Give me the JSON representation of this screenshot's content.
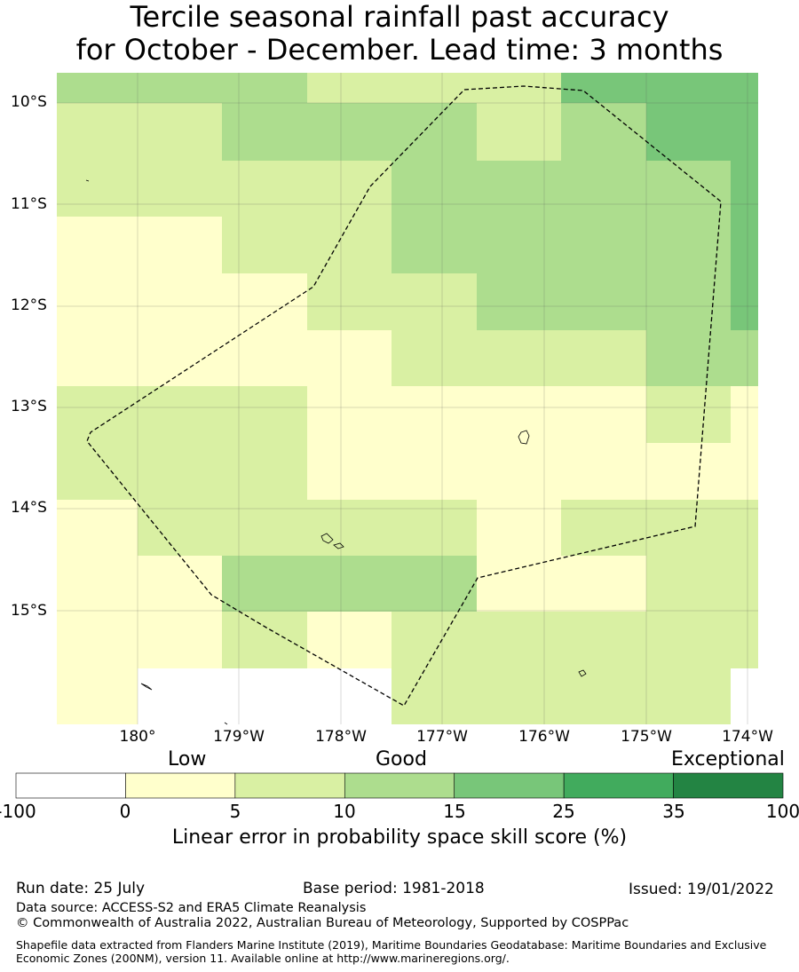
{
  "title": {
    "line1": "Tercile seasonal rainfall past accuracy",
    "line2": "for October - December. Lead time: 3 months"
  },
  "map": {
    "lat_labels": [
      "10°S",
      "11°S",
      "12°S",
      "13°S",
      "14°S",
      "15°S"
    ],
    "lon_labels": [
      "180°",
      "179°W",
      "178°W",
      "177°W",
      "176°W",
      "175°W",
      "174°W"
    ],
    "lon_range": [
      179.2,
      186.1
    ],
    "lat_range": [
      -16.1,
      -9.7
    ]
  },
  "legend": {
    "categories": [
      "Low",
      "Good",
      "Exceptional"
    ],
    "ticks": [
      "-100",
      "0",
      "5",
      "10",
      "15",
      "25",
      "35",
      "100"
    ],
    "colors": [
      "#ffffff",
      "#ffffcc",
      "#d9f0a3",
      "#addd8e",
      "#78c679",
      "#41ab5d",
      "#238443"
    ],
    "label": "Linear error in probability space skill score (%)"
  },
  "footer": {
    "run_date": "Run date: 25 July",
    "base_period": "Base period: 1981-2018",
    "issued": "Issued: 19/01/2022",
    "data_source": "Data source: ACCESS-S2 and ERA5 Climate Reanalysis",
    "copyright": "© Commonwealth of Australia 2022, Australian Bureau of Meteorology, Supported by COSPPac",
    "shapefile": "Shapefile data extracted from Flanders Marine Institute (2019), Maritime Boundaries Geodatabase: Maritime Boundaries and Exclusive Economic Zones (200NM), version 11. Available online at http://www.marineregions.org/."
  }
}
